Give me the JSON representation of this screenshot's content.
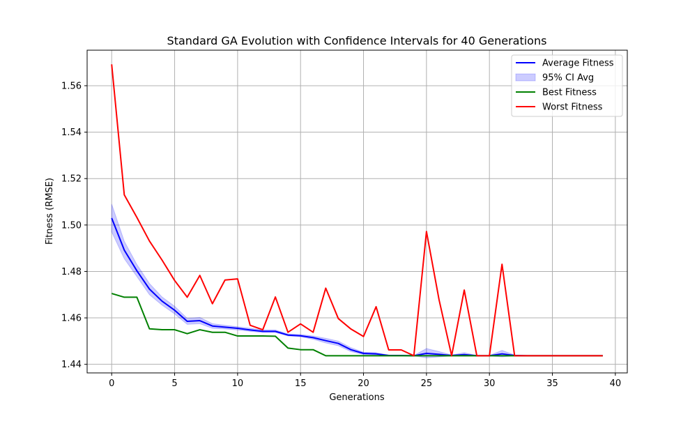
{
  "chart_data": {
    "type": "line",
    "title": "Standard GA Evolution with Confidence Intervals for 40 Generations",
    "xlabel": "Generations",
    "ylabel": "Fitness (RMSE)",
    "xlim": [
      -1.95,
      40.95
    ],
    "ylim": [
      1.4363,
      1.5753
    ],
    "xticks": [
      0,
      5,
      10,
      15,
      20,
      25,
      30,
      35,
      40
    ],
    "yticks": [
      1.44,
      1.46,
      1.48,
      1.5,
      1.52,
      1.54,
      1.56
    ],
    "xtick_labels": [
      "0",
      "5",
      "10",
      "15",
      "20",
      "25",
      "30",
      "35",
      "40"
    ],
    "ytick_labels": [
      "1.44",
      "1.46",
      "1.48",
      "1.50",
      "1.52",
      "1.54",
      "1.56"
    ],
    "grid": true,
    "legend_position": "top-right",
    "x": [
      0,
      1,
      2,
      3,
      4,
      5,
      6,
      7,
      8,
      9,
      10,
      11,
      12,
      13,
      14,
      15,
      16,
      17,
      18,
      19,
      20,
      21,
      22,
      23,
      24,
      25,
      26,
      27,
      28,
      29,
      30,
      31,
      32,
      33,
      34,
      35,
      36,
      37,
      38,
      39
    ],
    "series": [
      {
        "name": "Average Fitness",
        "kind": "line",
        "color": "#0000ff",
        "values": [
          1.503,
          1.4892,
          1.4803,
          1.4724,
          1.4672,
          1.4633,
          1.4585,
          1.4588,
          1.4565,
          1.456,
          1.4555,
          1.4548,
          1.4542,
          1.4542,
          1.4526,
          1.4523,
          1.4515,
          1.4502,
          1.449,
          1.4463,
          1.4447,
          1.4445,
          1.4438,
          1.4438,
          1.4437,
          1.4447,
          1.4443,
          1.4438,
          1.4442,
          1.4437,
          1.4437,
          1.4445,
          1.4438,
          1.4437,
          1.4437,
          1.4437,
          1.4437,
          1.4437,
          1.4437,
          1.4437
        ]
      },
      {
        "name": "95% CI Avg",
        "kind": "band",
        "color": "#0000ff",
        "lower": [
          1.497,
          1.4855,
          1.4778,
          1.47,
          1.4655,
          1.4617,
          1.4572,
          1.4575,
          1.4555,
          1.4552,
          1.4548,
          1.4542,
          1.4537,
          1.4537,
          1.4522,
          1.4519,
          1.4508,
          1.4492,
          1.448,
          1.4455,
          1.4442,
          1.4441,
          1.4437,
          1.4437,
          1.4436,
          1.4428,
          1.4432,
          1.4436,
          1.4435,
          1.4436,
          1.4436,
          1.4432,
          1.4436,
          1.4437,
          1.4437,
          1.4437,
          1.4437,
          1.4437,
          1.4437,
          1.4437
        ],
        "upper": [
          1.509,
          1.493,
          1.483,
          1.4748,
          1.469,
          1.465,
          1.4598,
          1.4602,
          1.4575,
          1.4568,
          1.4562,
          1.4555,
          1.4548,
          1.4548,
          1.4531,
          1.4528,
          1.4522,
          1.4512,
          1.45,
          1.4472,
          1.4452,
          1.445,
          1.444,
          1.4439,
          1.4438,
          1.4468,
          1.4455,
          1.444,
          1.445,
          1.4438,
          1.4438,
          1.446,
          1.444,
          1.4437,
          1.4437,
          1.4437,
          1.4437,
          1.4437,
          1.4437,
          1.4437
        ]
      },
      {
        "name": "Best Fitness",
        "kind": "line",
        "color": "#008000",
        "values": [
          1.4705,
          1.4689,
          1.4689,
          1.4553,
          1.4549,
          1.4549,
          1.4532,
          1.4549,
          1.4538,
          1.4538,
          1.4522,
          1.4522,
          1.4522,
          1.4521,
          1.447,
          1.4463,
          1.4463,
          1.4437,
          1.4437,
          1.4437,
          1.4437,
          1.4437,
          1.4437,
          1.4437,
          1.4437,
          1.4437,
          1.4437,
          1.4437,
          1.4437,
          1.4437,
          1.4437,
          1.4437,
          1.4437,
          1.4437,
          1.4437,
          1.4437,
          1.4437,
          1.4437,
          1.4437,
          1.4437
        ]
      },
      {
        "name": "Worst Fitness",
        "kind": "line",
        "color": "#ff0000",
        "values": [
          1.5692,
          1.513,
          1.5033,
          1.4931,
          1.4849,
          1.4761,
          1.4689,
          1.4783,
          1.4661,
          1.4763,
          1.4768,
          1.4568,
          1.4549,
          1.469,
          1.4538,
          1.4574,
          1.4538,
          1.4728,
          1.4597,
          1.4552,
          1.452,
          1.4648,
          1.4462,
          1.4462,
          1.4437,
          1.4972,
          1.4678,
          1.4437,
          1.472,
          1.4437,
          1.4437,
          1.4831,
          1.4437,
          1.4437,
          1.4437,
          1.4437,
          1.4437,
          1.4437,
          1.4437,
          1.4437
        ]
      }
    ]
  }
}
